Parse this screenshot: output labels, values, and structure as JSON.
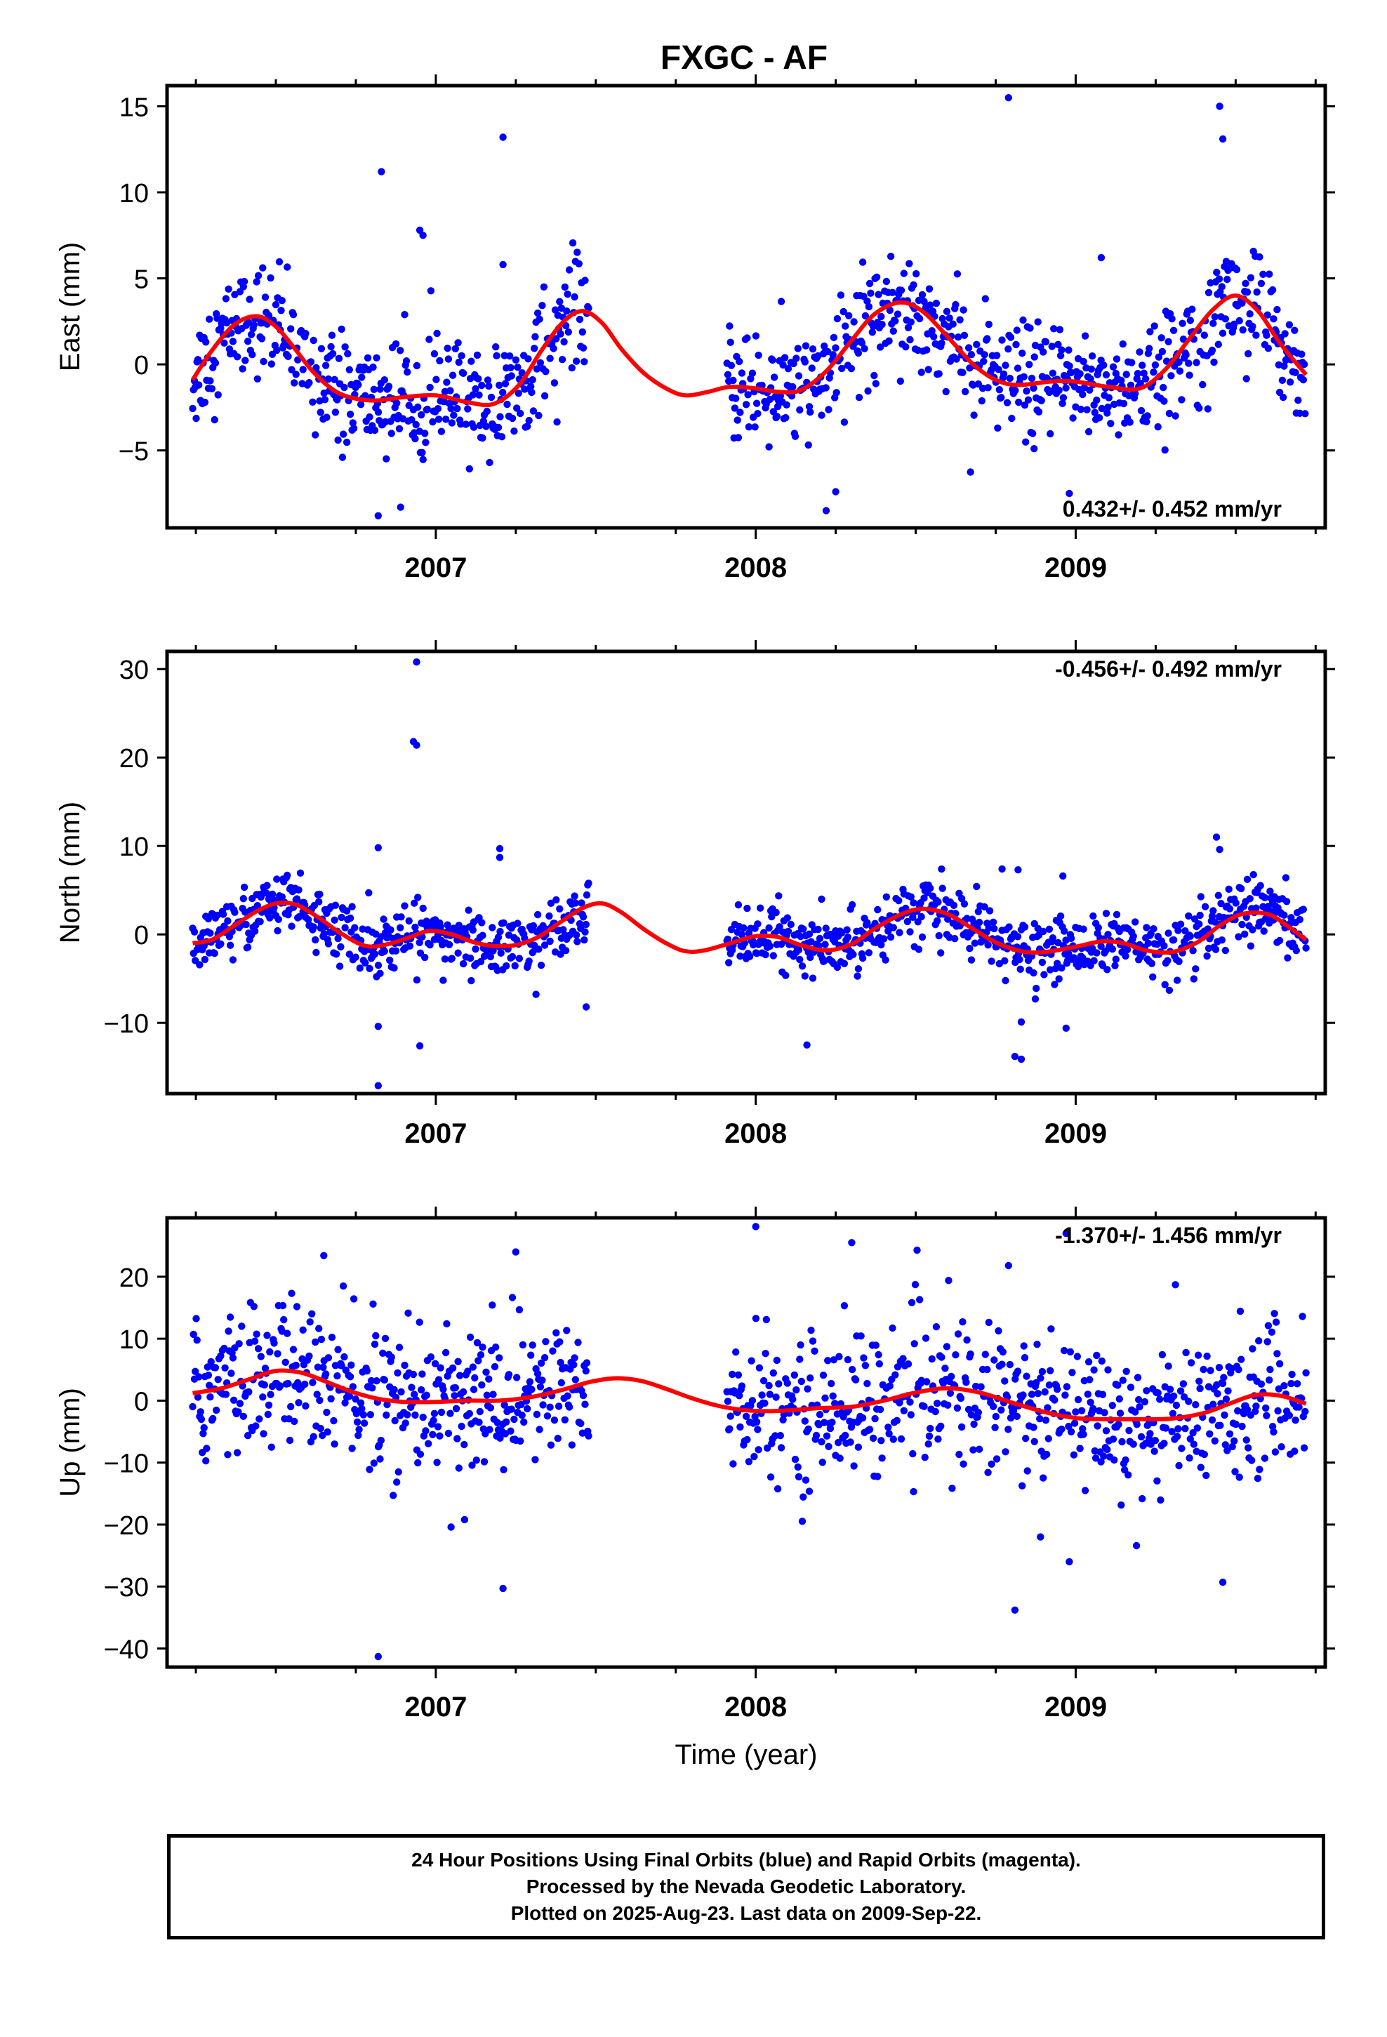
{
  "figure": {
    "title": "FXGC - AF",
    "footer": {
      "line1": "24 Hour Positions Using Final Orbits (blue) and Rapid Orbits (magenta).",
      "line2": "Processed by the Nevada Geodetic Laboratory.",
      "line3": "Plotted on 2025-Aug-23. Last data on 2009-Sep-22."
    },
    "colors": {
      "observed": "#0000ff",
      "model": "#ff0000",
      "frame": "#000000"
    }
  },
  "chart_data": [
    {
      "type": "scatter",
      "title": "FXGC - AF",
      "ylabel": "East (mm)",
      "xlabel": "",
      "annotation": "0.432+/- 0.452 mm/yr",
      "xlim": [
        2006.16,
        2009.78
      ],
      "ylim": [
        -9.5,
        16.2
      ],
      "xticks": [
        2007,
        2008,
        2009
      ],
      "xtick_labels": [
        "2007",
        "2008",
        "2009"
      ],
      "yticks": [
        -5,
        0,
        5,
        10,
        15
      ],
      "ytick_labels": [
        "−5",
        "0",
        "5",
        "10",
        "15"
      ],
      "grid": false,
      "gaps": [
        [
          2007.48,
          2007.91
        ]
      ],
      "series": [
        {
          "kind": "scatter",
          "data_range": [
            2006.24,
            2009.72
          ],
          "noise": 1.6,
          "outliers": [
            [
              2006.83,
              11.2
            ],
            [
              2006.95,
              7.8
            ],
            [
              2006.96,
              7.5
            ],
            [
              2007.21,
              13.2
            ],
            [
              2006.82,
              -8.8
            ],
            [
              2006.89,
              -8.3
            ],
            [
              2008.79,
              15.5
            ],
            [
              2009.45,
              15.0
            ],
            [
              2009.46,
              13.1
            ],
            [
              2008.22,
              -8.5
            ],
            [
              2008.25,
              -7.4
            ],
            [
              2008.98,
              -7.5
            ],
            [
              2009.08,
              6.2
            ],
            [
              2007.21,
              5.8
            ],
            [
              2008.87,
              -4.9
            ]
          ]
        },
        {
          "kind": "line",
          "x": [
            2006.24,
            2006.3,
            2006.37,
            2006.44,
            2006.5,
            2006.56,
            2006.62,
            2006.7,
            2006.8,
            2006.9,
            2007.0,
            2007.1,
            2007.18,
            2007.26,
            2007.33,
            2007.4,
            2007.46,
            2007.52,
            2007.58,
            2007.65,
            2007.72,
            2007.78,
            2007.85,
            2007.92,
            2008.0,
            2008.07,
            2008.14,
            2008.22,
            2008.3,
            2008.37,
            2008.45,
            2008.52,
            2008.6,
            2008.68,
            2008.75,
            2008.82,
            2008.92,
            2009.0,
            2009.1,
            2009.2,
            2009.28,
            2009.36,
            2009.43,
            2009.5,
            2009.57,
            2009.64,
            2009.72
          ],
          "y": [
            -0.9,
            0.8,
            2.3,
            2.8,
            2.2,
            0.9,
            -0.5,
            -1.7,
            -2.1,
            -1.9,
            -1.8,
            -2.2,
            -2.3,
            -1.2,
            0.8,
            2.5,
            3.1,
            2.4,
            0.9,
            -0.5,
            -1.4,
            -1.8,
            -1.6,
            -1.3,
            -1.4,
            -1.6,
            -1.5,
            -0.4,
            1.4,
            2.9,
            3.6,
            3.1,
            1.6,
            0.0,
            -0.9,
            -1.2,
            -1.0,
            -1.0,
            -1.3,
            -1.4,
            -0.3,
            1.6,
            3.2,
            4.0,
            3.1,
            1.2,
            -0.6
          ]
        }
      ]
    },
    {
      "type": "scatter",
      "ylabel": "North (mm)",
      "xlabel": "",
      "annotation": "-0.456+/- 0.492 mm/yr",
      "xlim": [
        2006.16,
        2009.78
      ],
      "ylim": [
        -18,
        32
      ],
      "xticks": [
        2007,
        2008,
        2009
      ],
      "xtick_labels": [
        "2007",
        "2008",
        "2009"
      ],
      "yticks": [
        -10,
        0,
        10,
        20,
        30
      ],
      "ytick_labels": [
        "−10",
        "0",
        "10",
        "20",
        "30"
      ],
      "grid": false,
      "gaps": [
        [
          2007.48,
          2007.91
        ]
      ],
      "series": [
        {
          "kind": "scatter",
          "data_range": [
            2006.24,
            2009.72
          ],
          "noise": 1.7,
          "outliers": [
            [
              2006.94,
              30.8
            ],
            [
              2006.93,
              21.8
            ],
            [
              2006.94,
              21.4
            ],
            [
              2006.82,
              9.8
            ],
            [
              2007.2,
              9.7
            ],
            [
              2007.2,
              8.7
            ],
            [
              2006.82,
              -10.4
            ],
            [
              2006.82,
              -17.1
            ],
            [
              2006.95,
              -12.6
            ],
            [
              2007.47,
              -8.2
            ],
            [
              2008.16,
              -12.5
            ],
            [
              2008.77,
              7.4
            ],
            [
              2008.82,
              7.3
            ],
            [
              2008.96,
              6.6
            ],
            [
              2009.44,
              11.0
            ],
            [
              2009.45,
              9.6
            ],
            [
              2008.81,
              -13.8
            ],
            [
              2008.83,
              -14.1
            ],
            [
              2008.97,
              -10.6
            ],
            [
              2008.83,
              -9.9
            ]
          ]
        },
        {
          "kind": "line",
          "x": [
            2006.24,
            2006.3,
            2006.37,
            2006.44,
            2006.5,
            2006.56,
            2006.63,
            2006.7,
            2006.78,
            2006.85,
            2006.92,
            2006.98,
            2007.05,
            2007.12,
            2007.18,
            2007.25,
            2007.32,
            2007.39,
            2007.46,
            2007.52,
            2007.58,
            2007.65,
            2007.72,
            2007.78,
            2007.84,
            2007.92,
            2008.0,
            2008.07,
            2008.14,
            2008.22,
            2008.3,
            2008.37,
            2008.45,
            2008.52,
            2008.6,
            2008.68,
            2008.75,
            2008.83,
            2008.9,
            2009.0,
            2009.08,
            2009.15,
            2009.22,
            2009.3,
            2009.38,
            2009.45,
            2009.52,
            2009.6,
            2009.66,
            2009.72
          ],
          "y": [
            -1.0,
            -0.6,
            1.0,
            2.6,
            3.5,
            3.4,
            2.0,
            0.2,
            -1.3,
            -1.1,
            -0.3,
            0.4,
            0.0,
            -0.9,
            -1.3,
            -1.2,
            -0.3,
            1.4,
            3.0,
            3.5,
            2.5,
            0.6,
            -1.0,
            -1.9,
            -1.8,
            -1.0,
            -0.2,
            -0.3,
            -1.2,
            -1.8,
            -1.1,
            0.6,
            2.2,
            2.9,
            2.3,
            0.6,
            -0.9,
            -1.9,
            -2.0,
            -1.4,
            -0.8,
            -1.0,
            -1.8,
            -2.0,
            -0.9,
            1.0,
            2.3,
            2.3,
            1.0,
            -0.6
          ]
        }
      ]
    },
    {
      "type": "scatter",
      "ylabel": "Up (mm)",
      "xlabel": "Time (year)",
      "annotation": "-1.370+/- 1.456 mm/yr",
      "xlim": [
        2006.16,
        2009.78
      ],
      "ylim": [
        -43,
        29.5
      ],
      "xticks": [
        2007,
        2008,
        2009
      ],
      "xtick_labels": [
        "2007",
        "2008",
        "2009"
      ],
      "yticks": [
        -40,
        -30,
        -20,
        -10,
        0,
        10,
        20
      ],
      "ytick_labels": [
        "−40",
        "−30",
        "−20",
        "−10",
        "0",
        "10",
        "20"
      ],
      "grid": false,
      "gaps": [
        [
          2007.48,
          2007.91
        ]
      ],
      "series": [
        {
          "kind": "scatter",
          "data_range": [
            2006.24,
            2009.72
          ],
          "noise": 6.0,
          "outliers": [
            [
              2006.82,
              -41.3
            ],
            [
              2007.21,
              -30.3
            ],
            [
              2008.0,
              28.1
            ],
            [
              2008.3,
              25.5
            ],
            [
              2008.79,
              21.8
            ],
            [
              2008.81,
              -33.8
            ],
            [
              2008.98,
              -26.0
            ],
            [
              2009.46,
              -29.3
            ],
            [
              2007.25,
              24.0
            ],
            [
              2007.09,
              -19.2
            ],
            [
              2006.65,
              23.4
            ],
            [
              2009.19,
              -23.4
            ],
            [
              2008.89,
              -22.0
            ],
            [
              2008.97,
              27.0
            ]
          ]
        },
        {
          "kind": "line",
          "x": [
            2006.24,
            2006.33,
            2006.42,
            2006.5,
            2006.58,
            2006.66,
            2006.74,
            2006.82,
            2006.9,
            2007.0,
            2007.1,
            2007.2,
            2007.3,
            2007.4,
            2007.48,
            2007.56,
            2007.64,
            2007.72,
            2007.8,
            2007.88,
            2007.96,
            2008.04,
            2008.12,
            2008.2,
            2008.3,
            2008.4,
            2008.5,
            2008.6,
            2008.7,
            2008.8,
            2008.9,
            2009.0,
            2009.1,
            2009.2,
            2009.3,
            2009.4,
            2009.48,
            2009.56,
            2009.64,
            2009.72
          ],
          "y": [
            1.2,
            2.0,
            3.5,
            4.8,
            4.5,
            3.0,
            1.4,
            0.3,
            -0.2,
            -0.2,
            0.0,
            0.0,
            0.6,
            1.8,
            3.0,
            3.6,
            3.2,
            1.9,
            0.4,
            -0.8,
            -1.5,
            -1.7,
            -1.5,
            -1.2,
            -1.0,
            0.0,
            1.3,
            2.0,
            1.3,
            -0.3,
            -1.8,
            -2.8,
            -3.0,
            -3.0,
            -2.9,
            -2.0,
            -0.5,
            0.9,
            0.8,
            -0.5
          ]
        }
      ]
    }
  ]
}
